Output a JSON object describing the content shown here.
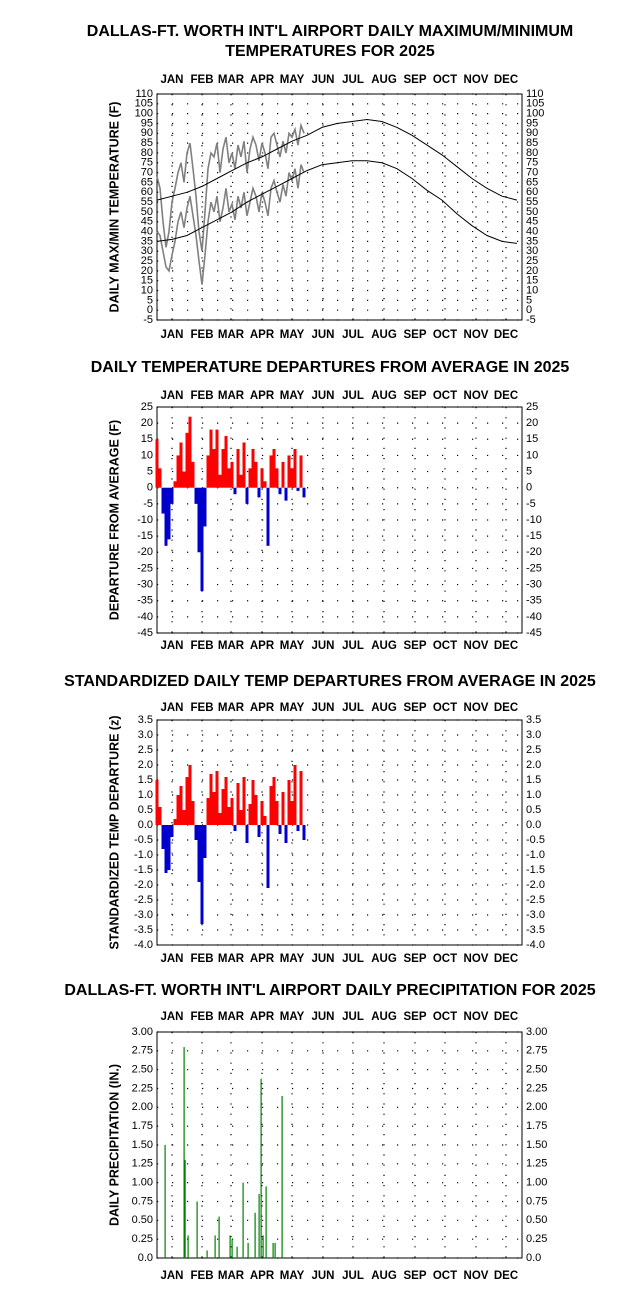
{
  "chart_data": [
    {
      "type": "line",
      "title": [
        "DALLAS-FT. WORTH INT'L AIRPORT DAILY MAXIMUM/MINIMUM",
        "TEMPERATURES FOR 2025"
      ],
      "ylabel": "DAILY MAX/MIN TEMPERATURE (F)",
      "xlim": [
        1,
        366
      ],
      "ylim": [
        -5,
        110
      ],
      "grid": true,
      "xticks": [
        {
          "value": 16,
          "label": "JAN"
        },
        {
          "value": 46,
          "label": "FEB"
        },
        {
          "value": 75,
          "label": "MAR"
        },
        {
          "value": 106,
          "label": "APR"
        },
        {
          "value": 136,
          "label": "MAY"
        },
        {
          "value": 167,
          "label": "JUN"
        },
        {
          "value": 197,
          "label": "JUL"
        },
        {
          "value": 228,
          "label": "AUG"
        },
        {
          "value": 259,
          "label": "SEP"
        },
        {
          "value": 289,
          "label": "OCT"
        },
        {
          "value": 320,
          "label": "NOV"
        },
        {
          "value": 350,
          "label": "DEC"
        }
      ],
      "yticks": [
        -5,
        0,
        5,
        10,
        15,
        20,
        25,
        30,
        35,
        40,
        45,
        50,
        55,
        60,
        65,
        70,
        75,
        80,
        85,
        90,
        95,
        100,
        105,
        110
      ],
      "series": [
        {
          "color": "#808080",
          "x": [
            1,
            4,
            7,
            10,
            13,
            16,
            19,
            22,
            25,
            28,
            31,
            34,
            37,
            40,
            43,
            46,
            49,
            52,
            55,
            58,
            61,
            64,
            67,
            70,
            73,
            76,
            79,
            82,
            85,
            88,
            91,
            94,
            97,
            100,
            103,
            106,
            109,
            112,
            115,
            118,
            121,
            124,
            127,
            130,
            133,
            136,
            139,
            142,
            145,
            148
          ],
          "values": [
            68,
            62,
            45,
            32,
            40,
            55,
            62,
            70,
            75,
            65,
            80,
            85,
            72,
            58,
            40,
            30,
            50,
            72,
            80,
            78,
            85,
            70,
            82,
            88,
            75,
            80,
            72,
            84,
            78,
            86,
            70,
            82,
            88,
            84,
            76,
            85,
            80,
            72,
            88,
            90,
            84,
            78,
            86,
            80,
            90,
            88,
            92,
            84,
            94,
            90
          ]
        },
        {
          "color": "#808080",
          "x": [
            1,
            4,
            7,
            10,
            13,
            16,
            19,
            22,
            25,
            28,
            31,
            34,
            37,
            40,
            43,
            46,
            49,
            52,
            55,
            58,
            61,
            64,
            67,
            70,
            73,
            76,
            79,
            82,
            85,
            88,
            91,
            94,
            97,
            100,
            103,
            106,
            109,
            112,
            115,
            118,
            121,
            124,
            127,
            130,
            133,
            136,
            139,
            142,
            145,
            148
          ],
          "values": [
            40,
            38,
            30,
            22,
            20,
            28,
            35,
            45,
            50,
            42,
            52,
            58,
            48,
            38,
            25,
            13,
            28,
            45,
            55,
            50,
            58,
            45,
            52,
            62,
            50,
            54,
            46,
            58,
            52,
            60,
            48,
            55,
            62,
            58,
            50,
            60,
            55,
            48,
            62,
            66,
            60,
            55,
            64,
            58,
            70,
            66,
            72,
            62,
            74,
            70
          ]
        },
        {
          "color": "#000000",
          "x": [
            1,
            16,
            31,
            46,
            61,
            76,
            91,
            106,
            121,
            136,
            151,
            166,
            181,
            196,
            211,
            226,
            241,
            256,
            271,
            286,
            301,
            316,
            331,
            346,
            361
          ],
          "values": [
            56,
            58,
            60,
            63,
            67,
            71,
            75,
            78,
            82,
            86,
            89,
            93,
            95,
            96,
            97,
            96,
            93,
            89,
            84,
            79,
            73,
            67,
            62,
            58,
            56
          ]
        },
        {
          "color": "#000000",
          "x": [
            1,
            16,
            31,
            46,
            61,
            76,
            91,
            106,
            121,
            136,
            151,
            166,
            181,
            196,
            211,
            226,
            241,
            256,
            271,
            286,
            301,
            316,
            331,
            346,
            361
          ],
          "values": [
            35,
            36,
            38,
            42,
            46,
            50,
            55,
            59,
            63,
            67,
            71,
            74,
            75,
            76,
            76,
            75,
            72,
            67,
            61,
            56,
            49,
            43,
            38,
            35,
            34
          ]
        }
      ]
    },
    {
      "type": "bar",
      "title": [
        "DAILY TEMPERATURE DEPARTURES FROM AVERAGE IN 2025"
      ],
      "ylabel": "DEPARTURE FROM AVERAGE (F)",
      "xlim": [
        1,
        366
      ],
      "ylim": [
        -45,
        25
      ],
      "grid": true,
      "positive_color": "#ff0000",
      "negative_color": "#0000cc",
      "xticks": [
        {
          "value": 16,
          "label": "JAN"
        },
        {
          "value": 46,
          "label": "FEB"
        },
        {
          "value": 75,
          "label": "MAR"
        },
        {
          "value": 106,
          "label": "APR"
        },
        {
          "value": 136,
          "label": "MAY"
        },
        {
          "value": 167,
          "label": "JUN"
        },
        {
          "value": 197,
          "label": "JUL"
        },
        {
          "value": 228,
          "label": "AUG"
        },
        {
          "value": 259,
          "label": "SEP"
        },
        {
          "value": 289,
          "label": "OCT"
        },
        {
          "value": 320,
          "label": "NOV"
        },
        {
          "value": 350,
          "label": "DEC"
        }
      ],
      "yticks": [
        -45,
        -40,
        -35,
        -30,
        -25,
        -20,
        -15,
        -10,
        -5,
        0,
        5,
        10,
        15,
        20,
        25
      ],
      "x": [
        1,
        4,
        7,
        10,
        13,
        16,
        19,
        22,
        25,
        28,
        31,
        34,
        37,
        40,
        43,
        46,
        49,
        52,
        55,
        58,
        61,
        64,
        67,
        70,
        73,
        76,
        79,
        82,
        85,
        88,
        91,
        94,
        97,
        100,
        103,
        106,
        109,
        112,
        115,
        118,
        121,
        124,
        127,
        130,
        133,
        136,
        139,
        142,
        145,
        148
      ],
      "values": [
        15,
        6,
        -8,
        -18,
        -16,
        -5,
        2,
        10,
        14,
        5,
        17,
        22,
        8,
        -5,
        -20,
        -32,
        -12,
        10,
        18,
        12,
        18,
        4,
        12,
        16,
        6,
        8,
        -2,
        12,
        4,
        14,
        -5,
        6,
        12,
        8,
        -3,
        6,
        2,
        -18,
        10,
        12,
        6,
        -2,
        8,
        -4,
        10,
        6,
        12,
        -1,
        10,
        -3
      ]
    },
    {
      "type": "bar",
      "title": [
        "STANDARDIZED DAILY TEMP DEPARTURES FROM AVERAGE IN 2025"
      ],
      "ylabel": "STANDARDIZED TEMP DEPARTURE (z)",
      "xlim": [
        1,
        366
      ],
      "ylim": [
        -4,
        3.5
      ],
      "grid": true,
      "positive_color": "#ff0000",
      "negative_color": "#0000cc",
      "xticks": [
        {
          "value": 16,
          "label": "JAN"
        },
        {
          "value": 46,
          "label": "FEB"
        },
        {
          "value": 75,
          "label": "MAR"
        },
        {
          "value": 106,
          "label": "APR"
        },
        {
          "value": 136,
          "label": "MAY"
        },
        {
          "value": 167,
          "label": "JUN"
        },
        {
          "value": 197,
          "label": "JUL"
        },
        {
          "value": 228,
          "label": "AUG"
        },
        {
          "value": 259,
          "label": "SEP"
        },
        {
          "value": 289,
          "label": "OCT"
        },
        {
          "value": 320,
          "label": "NOV"
        },
        {
          "value": 350,
          "label": "DEC"
        }
      ],
      "yticks": [
        {
          "value": -4,
          "label": "-4.0"
        },
        -3.5,
        {
          "value": -3,
          "label": "-3.0"
        },
        -2.5,
        {
          "value": -2,
          "label": "-2.0"
        },
        -1.5,
        {
          "value": -1,
          "label": "-1.0"
        },
        -0.5,
        {
          "value": 0,
          "label": "0.0"
        },
        0.5,
        {
          "value": 1,
          "label": "1.0"
        },
        1.5,
        {
          "value": 2,
          "label": "2.0"
        },
        2.5,
        {
          "value": 3,
          "label": "3.0"
        },
        3.5
      ],
      "x": [
        1,
        4,
        7,
        10,
        13,
        16,
        19,
        22,
        25,
        28,
        31,
        34,
        37,
        40,
        43,
        46,
        49,
        52,
        55,
        58,
        61,
        64,
        67,
        70,
        73,
        76,
        79,
        82,
        85,
        88,
        91,
        94,
        97,
        100,
        103,
        106,
        109,
        112,
        115,
        118,
        121,
        124,
        127,
        130,
        133,
        136,
        139,
        142,
        145,
        148
      ],
      "values": [
        1.5,
        0.6,
        -0.8,
        -1.6,
        -1.5,
        -0.4,
        0.2,
        1.0,
        1.3,
        0.5,
        1.6,
        2.0,
        0.8,
        -0.5,
        -1.9,
        -3.3,
        -1.1,
        0.9,
        1.7,
        1.1,
        1.8,
        0.4,
        1.2,
        1.6,
        0.6,
        0.9,
        -0.2,
        1.4,
        0.5,
        1.6,
        -0.6,
        0.7,
        1.5,
        1.0,
        -0.4,
        0.8,
        0.3,
        -2.1,
        1.3,
        1.6,
        0.8,
        -0.3,
        1.1,
        -0.6,
        1.5,
        0.8,
        2.0,
        -0.2,
        1.8,
        -0.5
      ]
    },
    {
      "type": "bar",
      "title": [
        "DALLAS-FT. WORTH INT'L AIRPORT DAILY PRECIPITATION FOR 2025"
      ],
      "ylabel": "DAILY PRECIPITATION (IN.)",
      "xlim": [
        1,
        366
      ],
      "ylim": [
        0,
        3
      ],
      "grid": true,
      "color": "#008000",
      "xticks": [
        {
          "value": 16,
          "label": "JAN"
        },
        {
          "value": 46,
          "label": "FEB"
        },
        {
          "value": 75,
          "label": "MAR"
        },
        {
          "value": 106,
          "label": "APR"
        },
        {
          "value": 136,
          "label": "MAY"
        },
        {
          "value": 167,
          "label": "JUN"
        },
        {
          "value": 197,
          "label": "JUL"
        },
        {
          "value": 228,
          "label": "AUG"
        },
        {
          "value": 259,
          "label": "SEP"
        },
        {
          "value": 289,
          "label": "OCT"
        },
        {
          "value": 320,
          "label": "NOV"
        },
        {
          "value": 350,
          "label": "DEC"
        }
      ],
      "yticks": [
        {
          "value": 0,
          "label": "0.0"
        },
        0.25,
        {
          "value": 0.5,
          "label": "0.50"
        },
        0.75,
        {
          "value": 1,
          "label": "1.00"
        },
        1.25,
        {
          "value": 1.5,
          "label": "1.50"
        },
        1.75,
        {
          "value": 2,
          "label": "2.00"
        },
        2.25,
        {
          "value": 2.5,
          "label": "2.50"
        },
        2.75,
        {
          "value": 3,
          "label": "3.00"
        }
      ],
      "x": [
        10,
        29,
        30,
        33,
        42,
        52,
        60,
        64,
        75,
        77,
        82,
        88,
        93,
        100,
        104,
        106,
        108,
        111,
        118,
        120,
        127
      ],
      "values": [
        1.5,
        2.8,
        1.3,
        0.3,
        0.75,
        0.1,
        0.3,
        0.55,
        0.3,
        0.25,
        0.15,
        1.0,
        0.2,
        0.6,
        0.85,
        2.38,
        0.3,
        0.95,
        0.2,
        0.2,
        2.15
      ]
    }
  ]
}
